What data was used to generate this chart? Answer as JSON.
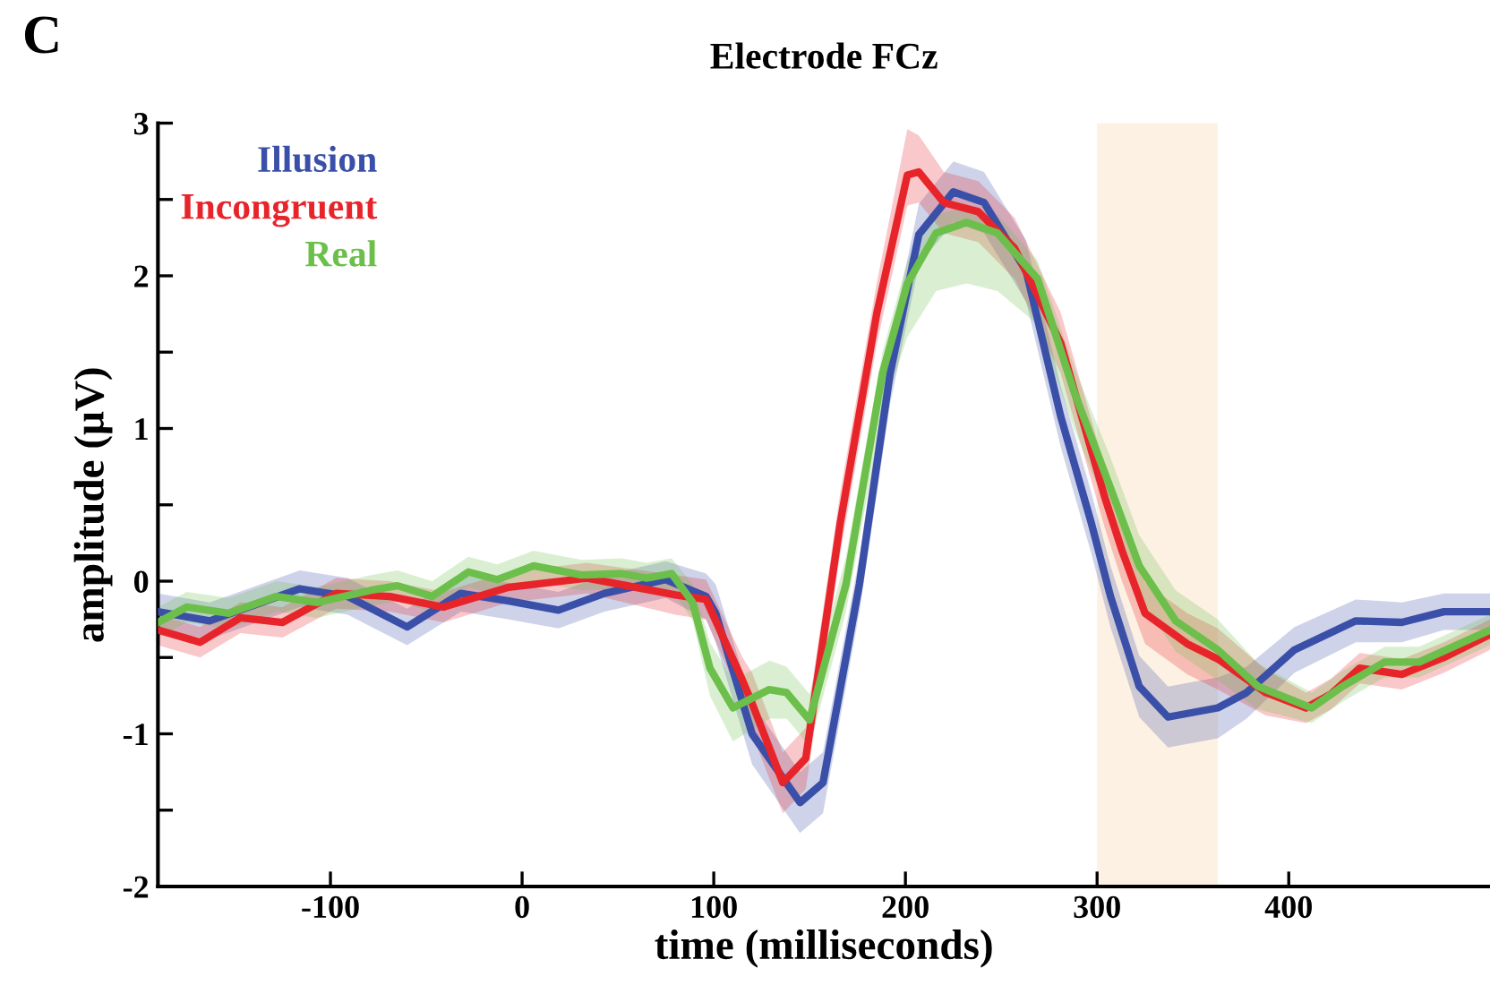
{
  "chart_data": {
    "type": "line",
    "title": "Electrode FCz",
    "xlabel": "time (milliseconds)",
    "ylabel": "amplitude (μV)",
    "annotations": [
      "C"
    ],
    "xlim": [
      -190,
      505
    ],
    "xticks": [
      -100,
      0,
      100,
      200,
      300,
      400
    ],
    "ylim": [
      -2,
      3
    ],
    "yticks": [
      -2,
      {
        "value": -1.5,
        "label": null
      },
      -1,
      {
        "value": -0.5,
        "label": null
      },
      0,
      {
        "value": 0.5,
        "label": null
      },
      1,
      {
        "value": 1.5,
        "label": null
      },
      2,
      {
        "value": 2.5,
        "label": null
      },
      3
    ],
    "grid": false,
    "legend": "top left",
    "line_style": "solid",
    "marker": "none",
    "bands": [
      {
        "axis": "x",
        "from": 300,
        "to": 363,
        "color": "#fdf1e3"
      }
    ],
    "series": [
      {
        "name": "Illusion",
        "color": "#3a4fa8",
        "x": [
          -190,
          -163,
          -116,
          -91,
          -60,
          -32,
          -7,
          19,
          43,
          75,
          96,
          101,
          120,
          145,
          157,
          176,
          192,
          207,
          225,
          241,
          263,
          281,
          297,
          307,
          322,
          337,
          363,
          378,
          403,
          435,
          459,
          481,
          505
        ],
        "values": [
          -0.2,
          -0.26,
          -0.05,
          -0.1,
          -0.3,
          -0.08,
          -0.13,
          -0.19,
          -0.08,
          0.01,
          -0.1,
          -0.21,
          -1.0,
          -1.45,
          -1.32,
          -0.02,
          1.36,
          2.27,
          2.55,
          2.48,
          2.03,
          1.08,
          0.38,
          -0.1,
          -0.69,
          -0.89,
          -0.83,
          -0.73,
          -0.45,
          -0.26,
          -0.27,
          -0.2,
          -0.2
        ],
        "lower": [
          -0.32,
          -0.38,
          -0.17,
          -0.22,
          -0.42,
          -0.2,
          -0.25,
          -0.31,
          -0.2,
          -0.11,
          -0.25,
          -0.4,
          -1.2,
          -1.65,
          -1.52,
          -0.2,
          1.16,
          2.07,
          2.35,
          2.28,
          1.83,
          0.88,
          0.18,
          -0.3,
          -0.89,
          -1.09,
          -1.03,
          -0.9,
          -0.6,
          -0.4,
          -0.4,
          -0.32,
          -0.32
        ],
        "upper": [
          -0.08,
          -0.14,
          0.07,
          0.02,
          -0.18,
          0.04,
          -0.01,
          -0.07,
          0.04,
          0.13,
          0.05,
          -0.02,
          -0.8,
          -1.25,
          -1.12,
          0.16,
          1.56,
          2.47,
          2.75,
          2.68,
          2.23,
          1.28,
          0.58,
          0.1,
          -0.49,
          -0.69,
          -0.63,
          -0.56,
          -0.3,
          -0.12,
          -0.14,
          -0.08,
          -0.08
        ]
      },
      {
        "name": "Incongruent",
        "color": "#e8242b",
        "x": [
          -190,
          -168,
          -147,
          -125,
          -97,
          -69,
          -41,
          -7,
          34,
          80,
          96,
          115,
          120,
          136,
          148,
          166,
          185,
          201,
          207,
          220,
          238,
          257,
          281,
          304,
          313,
          325,
          347,
          363,
          388,
          409,
          422,
          437,
          459,
          481,
          505
        ],
        "values": [
          -0.32,
          -0.4,
          -0.24,
          -0.27,
          -0.08,
          -0.1,
          -0.17,
          -0.04,
          0.02,
          -0.09,
          -0.12,
          -0.65,
          -0.8,
          -1.32,
          -1.16,
          0.38,
          1.75,
          2.66,
          2.68,
          2.48,
          2.42,
          2.18,
          1.56,
          0.55,
          0.2,
          -0.21,
          -0.41,
          -0.51,
          -0.73,
          -0.83,
          -0.74,
          -0.57,
          -0.61,
          -0.5,
          -0.35
        ],
        "lower": [
          -0.42,
          -0.5,
          -0.34,
          -0.37,
          -0.18,
          -0.2,
          -0.27,
          -0.14,
          -0.08,
          -0.22,
          -0.25,
          -0.8,
          -1.0,
          -1.52,
          -1.36,
          0.18,
          1.55,
          2.46,
          2.48,
          2.28,
          2.22,
          1.98,
          1.36,
          0.35,
          0.0,
          -0.41,
          -0.61,
          -0.71,
          -0.88,
          -0.93,
          -0.84,
          -0.67,
          -0.71,
          -0.6,
          -0.45
        ],
        "upper": [
          -0.22,
          -0.3,
          -0.14,
          -0.17,
          0.02,
          0.0,
          -0.07,
          0.06,
          0.12,
          0.04,
          0.01,
          -0.5,
          -0.6,
          -1.12,
          -0.96,
          0.58,
          1.95,
          2.96,
          2.92,
          2.68,
          2.62,
          2.38,
          1.76,
          0.75,
          0.4,
          -0.01,
          -0.21,
          -0.31,
          -0.58,
          -0.73,
          -0.64,
          -0.47,
          -0.51,
          -0.4,
          -0.25
        ]
      },
      {
        "name": "Real",
        "color": "#6cbf4a",
        "x": [
          -190,
          -175,
          -153,
          -128,
          -107,
          -79,
          -65,
          -47,
          -28,
          -13,
          6,
          31,
          52,
          65,
          78,
          89,
          98,
          110,
          129,
          138,
          150,
          169,
          188,
          201,
          216,
          232,
          248,
          269,
          288,
          307,
          322,
          341,
          363,
          384,
          412,
          428,
          450,
          468,
          505
        ],
        "values": [
          -0.27,
          -0.17,
          -0.21,
          -0.1,
          -0.14,
          -0.06,
          -0.03,
          -0.1,
          0.06,
          0.01,
          0.1,
          0.04,
          0.05,
          0.02,
          0.05,
          -0.14,
          -0.57,
          -0.83,
          -0.71,
          -0.73,
          -0.91,
          -0.02,
          1.36,
          1.95,
          2.28,
          2.35,
          2.28,
          1.98,
          1.24,
          0.61,
          0.1,
          -0.26,
          -0.45,
          -0.69,
          -0.83,
          -0.69,
          -0.53,
          -0.53,
          -0.32
        ],
        "lower": [
          -0.37,
          -0.27,
          -0.31,
          -0.2,
          -0.24,
          -0.16,
          -0.13,
          -0.2,
          -0.04,
          -0.09,
          0.0,
          -0.06,
          -0.05,
          -0.08,
          -0.05,
          -0.26,
          -0.75,
          -1.05,
          -0.9,
          -0.9,
          -1.08,
          -0.2,
          1.1,
          1.6,
          1.9,
          1.95,
          1.9,
          1.68,
          1.0,
          0.41,
          -0.1,
          -0.46,
          -0.65,
          -0.84,
          -0.93,
          -0.79,
          -0.63,
          -0.63,
          -0.42
        ],
        "upper": [
          -0.17,
          -0.07,
          -0.11,
          0.0,
          -0.04,
          0.04,
          0.07,
          0.0,
          0.16,
          0.11,
          0.2,
          0.14,
          0.15,
          0.12,
          0.15,
          -0.02,
          -0.4,
          -0.65,
          -0.52,
          -0.56,
          -0.74,
          0.16,
          1.5,
          2.1,
          2.4,
          2.45,
          2.4,
          2.1,
          1.4,
          0.81,
          0.3,
          -0.06,
          -0.25,
          -0.54,
          -0.73,
          -0.59,
          -0.43,
          -0.43,
          -0.22
        ]
      }
    ]
  }
}
